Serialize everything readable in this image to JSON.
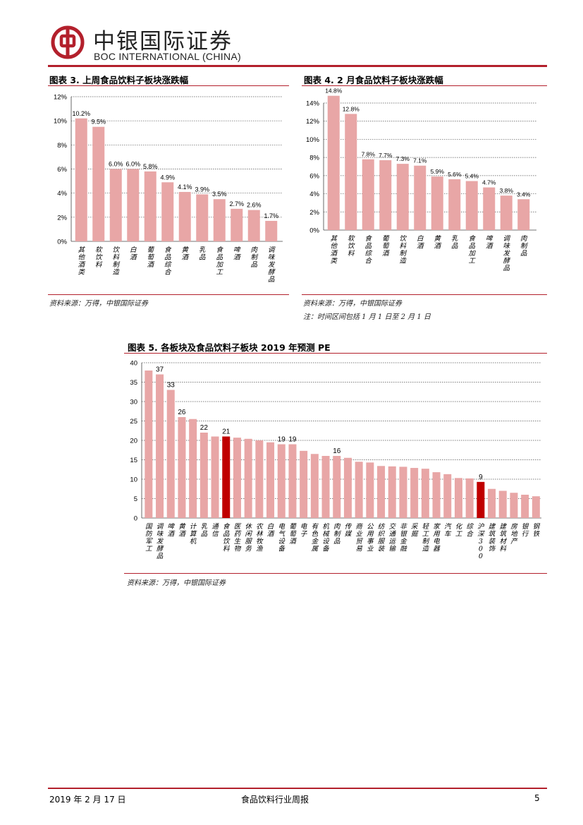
{
  "header": {
    "company_cn": "中银国际证券",
    "company_en": "BOC INTERNATIONAL (CHINA)",
    "brand_color": "#b3202c"
  },
  "figures": [
    {
      "title": "图表 3. 上周食品饮料子板块涨跌幅",
      "source": "资料来源：万得，中银国际证券",
      "note": ""
    },
    {
      "title": "图表 4. 2 月食品饮料子板块涨跌幅",
      "source": "资料来源：万得，中银国际证券",
      "note": "注：时间区间包括 1 月 1 日至 2 月 1 日"
    },
    {
      "title": "图表 5. 各板块及食品饮料子板块 2019 年预测 PE",
      "source": "资料来源：万得，中银国际证券",
      "note": ""
    }
  ],
  "chart_data": [
    {
      "type": "bar",
      "title": "图表 3. 上周食品饮料子板块涨跌幅",
      "categories": [
        "其他酒类",
        "软饮料",
        "饮料制造",
        "白酒",
        "葡萄酒",
        "食品综合",
        "黄酒",
        "乳品",
        "食品加工",
        "啤酒",
        "肉制品",
        "调味发酵品"
      ],
      "values": [
        10.2,
        9.5,
        6.0,
        6.0,
        5.8,
        4.9,
        4.1,
        3.9,
        3.5,
        2.7,
        2.6,
        1.7
      ],
      "data_labels": [
        "10.2%",
        "9.5%",
        "6.0%",
        "6.0%",
        "5.8%",
        "4.9%",
        "4.1%",
        "3.9%",
        "3.5%",
        "2.7%",
        "2.6%",
        "1.7%"
      ],
      "ylim": [
        0,
        12
      ],
      "yticks": [
        0,
        2,
        4,
        6,
        8,
        10,
        12
      ],
      "ytick_labels": [
        "0%",
        "2%",
        "4%",
        "6%",
        "8%",
        "10%",
        "12%"
      ],
      "bar_color": "#e8a6a6",
      "grid": true
    },
    {
      "type": "bar",
      "title": "图表 4. 2 月食品饮料子板块涨跌幅",
      "categories": [
        "其他酒类",
        "软饮料",
        "食品综合",
        "葡萄酒",
        "饮料制造",
        "白酒",
        "黄酒",
        "乳品",
        "食品加工",
        "啤酒",
        "调味发酵品",
        "肉制品"
      ],
      "values": [
        14.8,
        12.8,
        7.8,
        7.7,
        7.3,
        7.1,
        5.9,
        5.6,
        5.4,
        4.7,
        3.8,
        3.4
      ],
      "data_labels": [
        "14.8%",
        "12.8%",
        "7.8%",
        "7.7%",
        "7.3%",
        "7.1%",
        "5.9%",
        "5.6%",
        "5.4%",
        "4.7%",
        "3.8%",
        "3.4%"
      ],
      "ylim": [
        0,
        14
      ],
      "yticks": [
        0,
        2,
        4,
        6,
        8,
        10,
        12,
        14
      ],
      "ytick_labels": [
        "0%",
        "2%",
        "4%",
        "6%",
        "8%",
        "10%",
        "12%",
        "14%"
      ],
      "bar_color": "#e8a6a6",
      "grid": true
    },
    {
      "type": "bar",
      "title": "图表 5. 各板块及食品饮料子板块 2019 年预测 PE",
      "categories": [
        "国防军工",
        "调味发酵品",
        "啤酒",
        "黄酒",
        "计算机",
        "乳品",
        "通信",
        "食品饮料",
        "医药生物",
        "休闲服务",
        "农林牧渔",
        "白酒",
        "电气设备",
        "葡萄酒",
        "电子",
        "有色金属",
        "机械设备",
        "肉制品",
        "传媒",
        "商业贸易",
        "公用事业",
        "纺织服装",
        "交通运输",
        "非银金融",
        "采掘",
        "轻工制造",
        "家用电器",
        "汽车",
        "化工",
        "综合",
        "沪深300",
        "建筑装饰",
        "建筑材料",
        "房地产",
        "银行",
        "钢铁"
      ],
      "values": [
        38,
        37,
        33,
        26,
        25.5,
        22,
        21,
        21,
        20.7,
        20.4,
        20,
        19.5,
        19,
        19,
        17.3,
        16.5,
        16,
        16,
        15.5,
        14.5,
        14.3,
        13.4,
        13.3,
        13.2,
        12.9,
        12.7,
        11.8,
        11.3,
        10.3,
        10.2,
        9.3,
        7.5,
        7,
        6.5,
        6,
        5.6
      ],
      "data_labels": {
        "1": "37",
        "2": "33",
        "3": "26",
        "5": "22",
        "7": "21",
        "12": "19",
        "13": "19",
        "17": "16",
        "30": "9"
      },
      "highlight": [
        7,
        30
      ],
      "ylim": [
        0,
        40
      ],
      "yticks": [
        0,
        5,
        10,
        15,
        20,
        25,
        30,
        35,
        40
      ],
      "ytick_labels": [
        "0",
        "5",
        "10",
        "15",
        "20",
        "25",
        "30",
        "35",
        "40"
      ],
      "bar_color": "#e8a6a6",
      "highlight_color": "#c00000",
      "grid": true
    }
  ],
  "footer": {
    "date": "2019 年 2 月 17 日",
    "report_name": "食品饮料行业周报",
    "page_number": "5"
  }
}
